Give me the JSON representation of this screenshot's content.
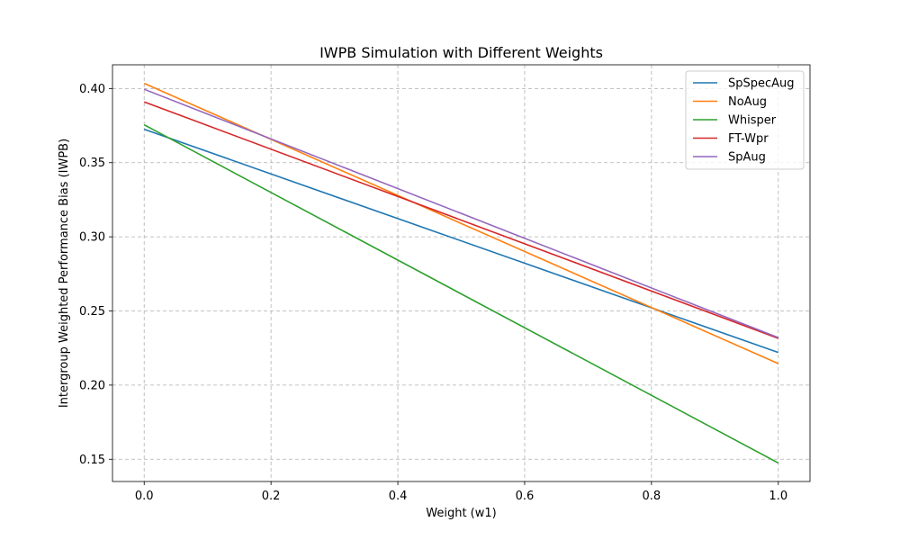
{
  "chart_data": {
    "type": "line",
    "title": "IWPB Simulation with Different Weights",
    "xlabel": "Weight (w1)",
    "ylabel": "Intergroup Weighted Performance Bias (IWPB)",
    "xlim": [
      -0.05,
      1.05
    ],
    "ylim": [
      0.135,
      0.416
    ],
    "xticks": [
      "0.0",
      "0.2",
      "0.4",
      "0.6",
      "0.8",
      "1.0"
    ],
    "yticks": [
      "0.15",
      "0.20",
      "0.25",
      "0.30",
      "0.35",
      "0.40"
    ],
    "grid": true,
    "legend_position": "top-right",
    "series": [
      {
        "name": "SpSpecAug",
        "color": "#1f77b4",
        "x": [
          0.0,
          1.0
        ],
        "values": [
          0.3725,
          0.222
        ]
      },
      {
        "name": "NoAug",
        "color": "#ff7f0e",
        "x": [
          0.0,
          1.0
        ],
        "values": [
          0.4035,
          0.2145
        ]
      },
      {
        "name": "Whisper",
        "color": "#2ca02c",
        "x": [
          0.0,
          1.0
        ],
        "values": [
          0.3755,
          0.1475
        ]
      },
      {
        "name": "FT-Wpr",
        "color": "#d62728",
        "x": [
          0.0,
          1.0
        ],
        "values": [
          0.391,
          0.2315
        ]
      },
      {
        "name": "SpAug",
        "color": "#9467bd",
        "x": [
          0.0,
          1.0
        ],
        "values": [
          0.3995,
          0.232
        ]
      }
    ]
  }
}
